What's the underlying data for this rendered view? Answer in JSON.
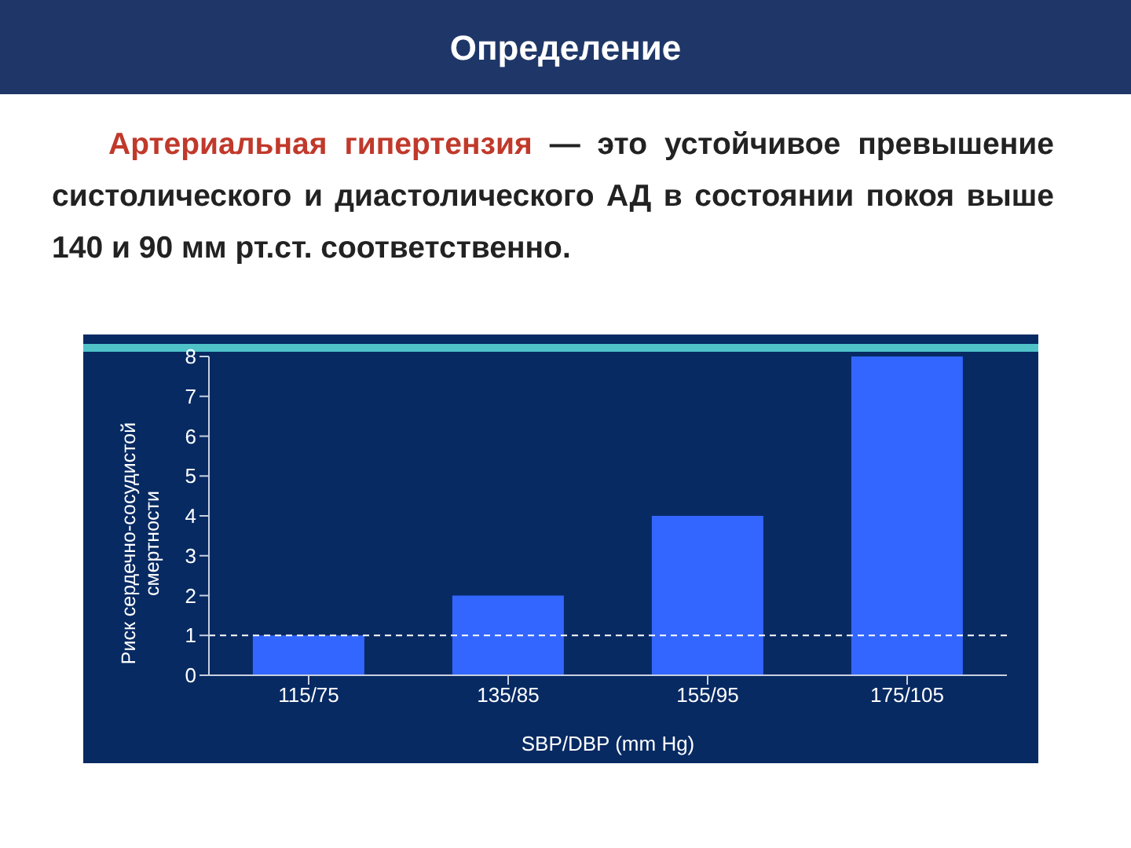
{
  "chart_data": {
    "type": "bar",
    "title": "Определение",
    "annotations": [
      "Артериальная гипертензия",
      "— это устойчивое превышение систолического и диастолического АД в состоянии покоя выше 140 и 90 мм рт.ст. соответственно."
    ],
    "categories": [
      "115/75",
      "135/85",
      "155/95",
      "175/105"
    ],
    "values": [
      1,
      2,
      4,
      8
    ],
    "color": "#3366ff",
    "ylim": [
      0,
      8
    ],
    "yticks": [
      0,
      1,
      2,
      3,
      4,
      5,
      6,
      7,
      8
    ],
    "xlabel": "SBP/DBP (mm Hg)",
    "ylabel": "Риск сердечно-сосудистой смертности",
    "ref_lines": [
      {
        "axis": "y",
        "value": 1,
        "color": "#ffffff",
        "line_style": "dashed"
      }
    ],
    "grid": false,
    "legend": false
  }
}
